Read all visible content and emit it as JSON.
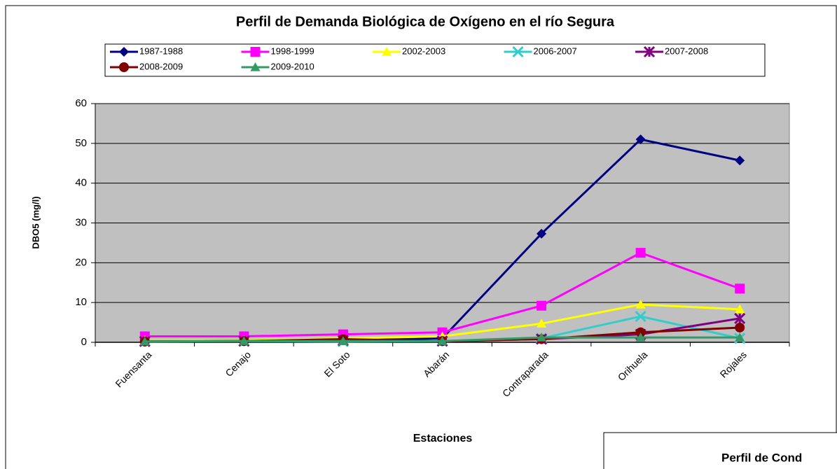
{
  "chart_data": {
    "type": "line",
    "title": "Perfil de Demanda Biológica de Oxígeno en el río Segura",
    "x_label": "Estaciones",
    "y_label": "DBO5 (mg/l)",
    "categories": [
      "Fuensanta",
      "Cenajo",
      "El Soto",
      "Abarán",
      "Contraparada",
      "Orihuela",
      "Rojales"
    ],
    "series": [
      {
        "name": "1987-1988",
        "color": "#000080",
        "marker": "diamond",
        "values": [
          0.5,
          0.5,
          0.5,
          1,
          27.3,
          51,
          45.7
        ]
      },
      {
        "name": "1998-1999",
        "color": "#ff00ff",
        "marker": "square",
        "values": [
          1.5,
          1.5,
          2,
          2.5,
          9.2,
          22.5,
          13.5
        ]
      },
      {
        "name": "2002-2003",
        "color": "#ffff00",
        "marker": "triangle",
        "values": [
          0.5,
          0.5,
          1,
          1.5,
          4.7,
          9.5,
          8.3
        ]
      },
      {
        "name": "2006-2007",
        "color": "#33cccc",
        "marker": "x",
        "values": [
          0.3,
          0.3,
          0.2,
          0.3,
          1,
          6.5,
          1
        ]
      },
      {
        "name": "2007-2008",
        "color": "#800080",
        "marker": "star",
        "values": [
          0.2,
          0.3,
          0.5,
          0.3,
          0.8,
          2,
          6
        ]
      },
      {
        "name": "2008-2009",
        "color": "#800000",
        "marker": "circle",
        "values": [
          0.2,
          0.3,
          0.8,
          0.3,
          0.8,
          2.5,
          3.7
        ]
      },
      {
        "name": "2009-2010",
        "color": "#339966",
        "marker": "triangle",
        "values": [
          0.2,
          0.3,
          0.3,
          0.3,
          1.2,
          1.2,
          1.2
        ]
      }
    ],
    "ylim": [
      0,
      60
    ],
    "yticks": [
      0,
      10,
      20,
      30,
      40,
      50,
      60
    ],
    "grid": true,
    "legend": "top"
  },
  "overlay_title": "Perfil de Cond"
}
